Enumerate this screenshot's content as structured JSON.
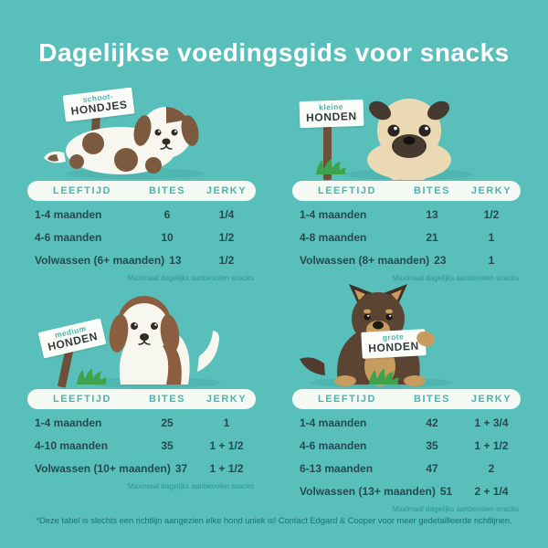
{
  "title": "Dagelijkse voedingsgids voor snacks",
  "columns": [
    "LEEFTIJD",
    "BITES",
    "JERKY"
  ],
  "footnote": "Maximaal dagelijks aanbevolen snacks",
  "disclaimer": "*Deze tabel is slechts een richtlijn aangezien elke hond uniek is! Contact Edgard & Cooper voor meer gedetailleerde richtlijnen.",
  "colors": {
    "bg": "#58BFBB",
    "shadow": "#4FB5B1",
    "pill": "#F5F9F3",
    "teal-text": "#4CB4B0",
    "dark-text": "#264A50",
    "footnote": "#2E9894",
    "disclaimer": "#1C7373",
    "white": "#FBFDF9",
    "post": "#6E4F39",
    "grass": "#3FA34D"
  },
  "groups": [
    {
      "dog_breed": "toy-puppy",
      "sign_small": "schoot-",
      "sign_big": "HONDJES",
      "rows": [
        [
          "1-4 maanden",
          "6",
          "1/4"
        ],
        [
          "4-6 maanden",
          "10",
          "1/2"
        ],
        [
          "Volwassen (6+ maanden)",
          "13",
          "1/2"
        ]
      ]
    },
    {
      "dog_breed": "pug",
      "sign_small": "kleine",
      "sign_big": "HONDEN",
      "rows": [
        [
          "1-4 maanden",
          "13",
          "1/2"
        ],
        [
          "4-8 maanden",
          "21",
          "1"
        ],
        [
          "Volwassen (8+ maanden)",
          "23",
          "1"
        ]
      ]
    },
    {
      "dog_breed": "spaniel",
      "sign_small": "medium",
      "sign_big": "HONDEN",
      "rows": [
        [
          "1-4 maanden",
          "25",
          "1"
        ],
        [
          "4-10 maanden",
          "35",
          "1 + 1/2"
        ],
        [
          "Volwassen (10+ maanden)",
          "37",
          "1 + 1/2"
        ]
      ]
    },
    {
      "dog_breed": "german-shepherd",
      "sign_small": "grote",
      "sign_big": "HONDEN",
      "rows": [
        [
          "1-4 maanden",
          "42",
          "1 + 3/4"
        ],
        [
          "4-6 maanden",
          "35",
          "1 + 1/2"
        ],
        [
          "6-13 maanden",
          "47",
          "2"
        ],
        [
          "Volwassen (13+ maanden)",
          "51",
          "2 + 1/4"
        ]
      ]
    }
  ]
}
